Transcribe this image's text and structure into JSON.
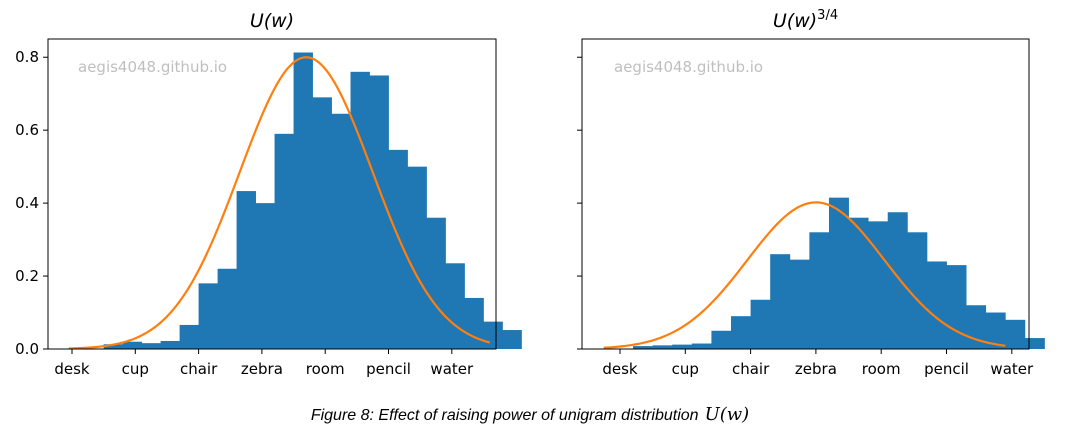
{
  "figure": {
    "caption": "Figure 8: Effect of raising power of unigram distribution",
    "caption_math": "U(w)"
  },
  "chart_data": [
    {
      "type": "bar",
      "title": "U(w)",
      "title_superscript": "",
      "watermark": "aegis4048.github.io",
      "xlabel": "",
      "ylabel": "",
      "x_tick_labels": [
        "desk",
        "cup",
        "chair",
        "zebra",
        "room",
        "pencil",
        "water"
      ],
      "y_tick_labels": [
        "0.0",
        "0.2",
        "0.4",
        "0.6",
        "0.8"
      ],
      "ylim": [
        0,
        0.85
      ],
      "grid": false,
      "bar_color": "#1f77b4",
      "curve_color": "#ff7f0e",
      "histogram": {
        "bin_start": 0.2,
        "bin_width": 0.3,
        "values": [
          0.0,
          0.013,
          0.02,
          0.016,
          0.022,
          0.066,
          0.18,
          0.22,
          0.433,
          0.4,
          0.59,
          0.813,
          0.69,
          0.645,
          0.76,
          0.75,
          0.546,
          0.5,
          0.36,
          0.235,
          0.14,
          0.075,
          0.052
        ]
      },
      "curve": {
        "x_range": [
          -0.05,
          6.6
        ],
        "peak_x": 3.7,
        "peak_y": 0.8,
        "sigma": 1.05
      }
    },
    {
      "type": "bar",
      "title": "U(w)",
      "title_superscript": "3/4",
      "watermark": "aegis4048.github.io",
      "xlabel": "",
      "ylabel": "",
      "x_tick_labels": [
        "desk",
        "cup",
        "chair",
        "zebra",
        "room",
        "pencil",
        "water"
      ],
      "y_tick_labels": [
        "0.0",
        "0.2",
        "0.4",
        "0.6",
        "0.8"
      ],
      "ylim": [
        0,
        0.85
      ],
      "grid": false,
      "bar_color": "#1f77b4",
      "curve_color": "#ff7f0e",
      "histogram": {
        "bin_start": 0.2,
        "bin_width": 0.3,
        "values": [
          0.008,
          0.01,
          0.012,
          0.015,
          0.05,
          0.09,
          0.135,
          0.26,
          0.245,
          0.32,
          0.415,
          0.36,
          0.35,
          0.375,
          0.32,
          0.24,
          0.23,
          0.12,
          0.1,
          0.08,
          0.03
        ]
      },
      "curve": {
        "x_range": [
          -0.25,
          5.9
        ],
        "peak_x": 3.0,
        "peak_y": 0.402,
        "sigma": 1.05
      }
    }
  ]
}
